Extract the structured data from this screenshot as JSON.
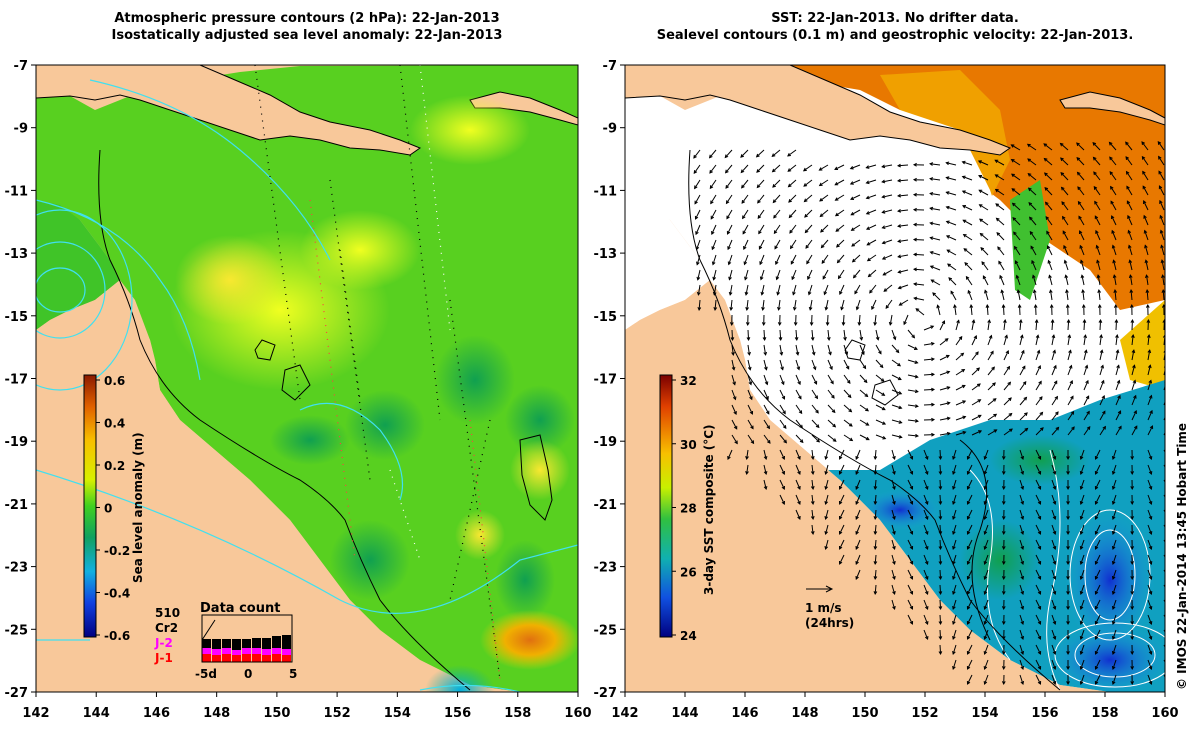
{
  "left_panel": {
    "title_line1": "Atmospheric pressure contours (2 hPa): 22-Jan-2013",
    "title_line2": "Isostatically adjusted sea level anomaly: 22-Jan-2013",
    "colorbar": {
      "label": "Sea level anomaly (m)",
      "ticks": [
        "0.6",
        "0.4",
        "0.2",
        "0",
        "-0.2",
        "-0.4",
        "-0.6"
      ]
    },
    "data_count": {
      "title": "Data count",
      "satellites": [
        "510",
        "Cr2",
        "J-2",
        "J-1"
      ],
      "satellite_colors": [
        "#000000",
        "#000000",
        "#ff00ff",
        "#ff0000"
      ],
      "x_ticks": [
        "-5d",
        "0",
        "5"
      ]
    }
  },
  "right_panel": {
    "title_line1": "SST: 22-Jan-2013. No drifter data.",
    "title_line2": "Sealevel contours (0.1 m) and geostrophic velocity: 22-Jan-2013.",
    "colorbar": {
      "label": "3-day SST composite (°C)",
      "ticks": [
        "32",
        "30",
        "28",
        "26",
        "24"
      ]
    },
    "velocity_scale": {
      "line1": "1 m/s",
      "line2": "(24hrs)"
    }
  },
  "axes": {
    "lat_ticks": [
      "-7",
      "-9",
      "-11",
      "-13",
      "-15",
      "-17",
      "-19",
      "-21",
      "-23",
      "-25",
      "-27"
    ],
    "lon_ticks": [
      "142",
      "144",
      "146",
      "148",
      "150",
      "152",
      "154",
      "156",
      "158",
      "160"
    ]
  },
  "credit": "© IMOS 22-Jan-2014 13:45 Hobart Time"
}
